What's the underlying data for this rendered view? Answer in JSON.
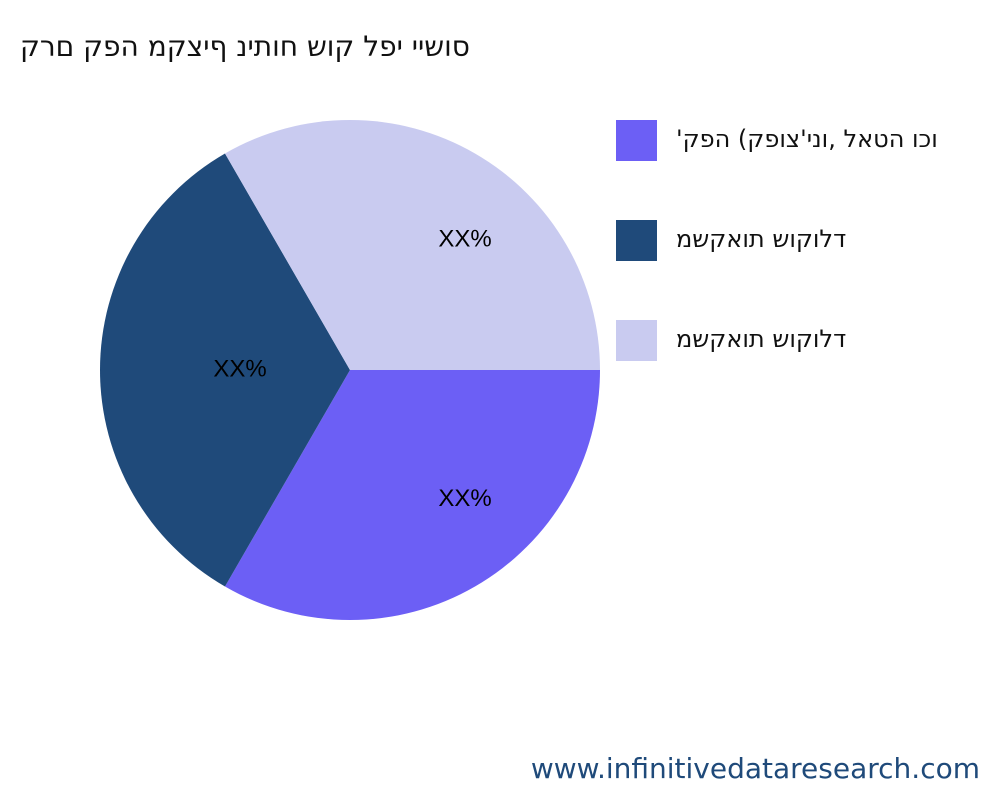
{
  "chart_data": {
    "type": "pie",
    "title": "סושיי יפל קוש חותינ ףיצקמ הפק םרק",
    "categories": [
      "'וכו הטאל ,וני'צופק) הפק",
      "דלוקוש תואקשמ",
      "דלוקוש תואקשמ"
    ],
    "values": [
      33.33,
      33.33,
      33.33
    ],
    "value_labels": [
      "XX%",
      "XX%",
      "XX%"
    ],
    "colors": [
      "#6c5ff5",
      "#1f4a7a",
      "#c9cbf0"
    ],
    "legend": "right"
  },
  "footer": "www.infinitivedataresearch.com"
}
